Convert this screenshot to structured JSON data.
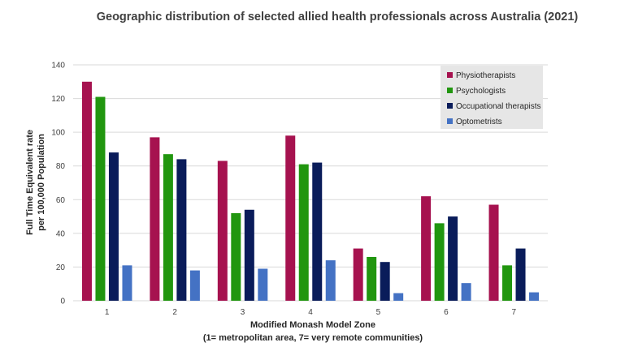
{
  "chart_data": {
    "type": "bar",
    "title": "Geographic distribution of selected allied health professionals across Australia (2021)",
    "xlabel": "Modified Monash Model Zone",
    "xlabel_sub": "(1= metropolitan area, 7= very remote communities)",
    "ylabel": "Full Time Equivalent rate",
    "ylabel_sub": "per 100,000 Population",
    "categories": [
      "1",
      "2",
      "3",
      "4",
      "5",
      "6",
      "7"
    ],
    "ylim": [
      0,
      140
    ],
    "yticks": [
      "0",
      "20",
      "40",
      "60",
      "80",
      "100",
      "120",
      "140"
    ],
    "grid": true,
    "legend_position": "top-right",
    "series": [
      {
        "name": "Physiotherapists",
        "color": "#a6124f",
        "values": [
          130,
          97,
          83,
          98,
          31,
          62,
          57
        ]
      },
      {
        "name": "Psychologists",
        "color": "#21960f",
        "values": [
          121,
          87,
          52,
          81,
          26,
          46,
          21
        ]
      },
      {
        "name": "Occupational therapists",
        "color": "#0a1c5a",
        "values": [
          88,
          84,
          54,
          82,
          23,
          50,
          31
        ]
      },
      {
        "name": "Optometrists",
        "color": "#4472c4",
        "values": [
          21,
          18,
          19,
          24,
          4.5,
          10.5,
          5
        ]
      }
    ]
  }
}
